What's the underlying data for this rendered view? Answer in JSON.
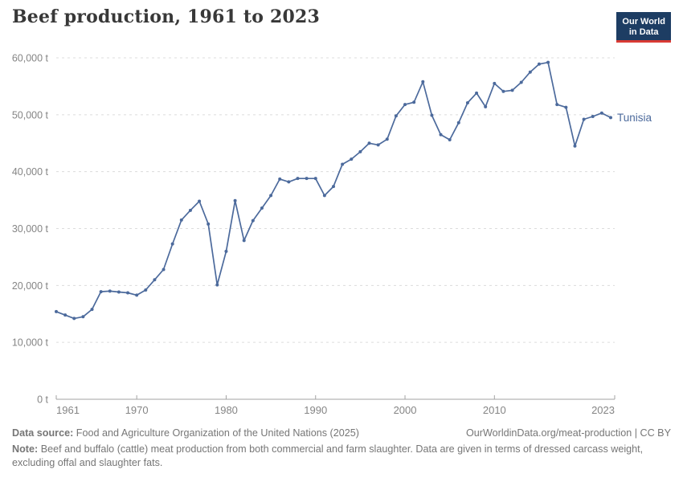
{
  "header": {
    "title": "Beef production, 1961 to 2023",
    "logo_line1": "Our World",
    "logo_line2": "in Data"
  },
  "chart_data": {
    "type": "line",
    "title": "Beef production, 1961 to 2023",
    "series_name": "Tunisia",
    "unit": "t",
    "xlim": [
      1961,
      2023
    ],
    "ylim": [
      0,
      60000
    ],
    "grid": true,
    "legend_position": "end-of-line-label",
    "x": [
      1961,
      1962,
      1963,
      1964,
      1965,
      1966,
      1967,
      1968,
      1969,
      1970,
      1971,
      1972,
      1973,
      1974,
      1975,
      1976,
      1977,
      1978,
      1979,
      1980,
      1981,
      1982,
      1983,
      1984,
      1985,
      1986,
      1987,
      1988,
      1989,
      1990,
      1991,
      1992,
      1993,
      1994,
      1995,
      1996,
      1997,
      1998,
      1999,
      2000,
      2001,
      2002,
      2003,
      2004,
      2005,
      2006,
      2007,
      2008,
      2009,
      2010,
      2011,
      2012,
      2013,
      2014,
      2015,
      2016,
      2017,
      2018,
      2019,
      2020,
      2021,
      2022,
      2023
    ],
    "values": [
      15400,
      14800,
      14200,
      14500,
      15800,
      18900,
      19000,
      18850,
      18700,
      18300,
      19200,
      21000,
      22800,
      27300,
      31500,
      33200,
      34800,
      30800,
      20100,
      26000,
      34900,
      27900,
      31400,
      33600,
      35800,
      38700,
      38200,
      38800,
      38800,
      38800,
      35800,
      37400,
      41300,
      42200,
      43500,
      45000,
      44700,
      45700,
      49800,
      51800,
      52200,
      55800,
      49900,
      46500,
      45600,
      48600,
      52100,
      53800,
      51400,
      55500,
      54100,
      54300,
      55700,
      57500,
      58900,
      59200,
      51800,
      51300,
      44500,
      49200,
      49700,
      50300,
      49500
    ],
    "y_ticks": [
      {
        "v": 0,
        "label": "0 t"
      },
      {
        "v": 10000,
        "label": "10,000 t"
      },
      {
        "v": 20000,
        "label": "20,000 t"
      },
      {
        "v": 30000,
        "label": "30,000 t"
      },
      {
        "v": 40000,
        "label": "40,000 t"
      },
      {
        "v": 50000,
        "label": "50,000 t"
      },
      {
        "v": 60000,
        "label": "60,000 t"
      }
    ],
    "x_ticks": [
      {
        "v": 1961,
        "label": "1961"
      },
      {
        "v": 1970,
        "label": "1970"
      },
      {
        "v": 1980,
        "label": "1980"
      },
      {
        "v": 1990,
        "label": "1990"
      },
      {
        "v": 2000,
        "label": "2000"
      },
      {
        "v": 2010,
        "label": "2010"
      },
      {
        "v": 2023,
        "label": "2023"
      }
    ],
    "colors": {
      "line": "#4C6A9C",
      "entity_label": "#4C6A9C",
      "grid": "#dcdcdc",
      "axis": "#a3a3a3",
      "tick_text": "#858585"
    }
  },
  "footer": {
    "source_label": "Data source:",
    "source_text": "Food and Agriculture Organization of the United Nations (2025)",
    "right_text": "OurWorldinData.org/meat-production | CC BY",
    "note_label": "Note:",
    "note_text": "Beef and buffalo (cattle) meat production from both commercial and farm slaughter. Data are given in terms of dressed carcass weight, excluding offal and slaughter fats."
  }
}
